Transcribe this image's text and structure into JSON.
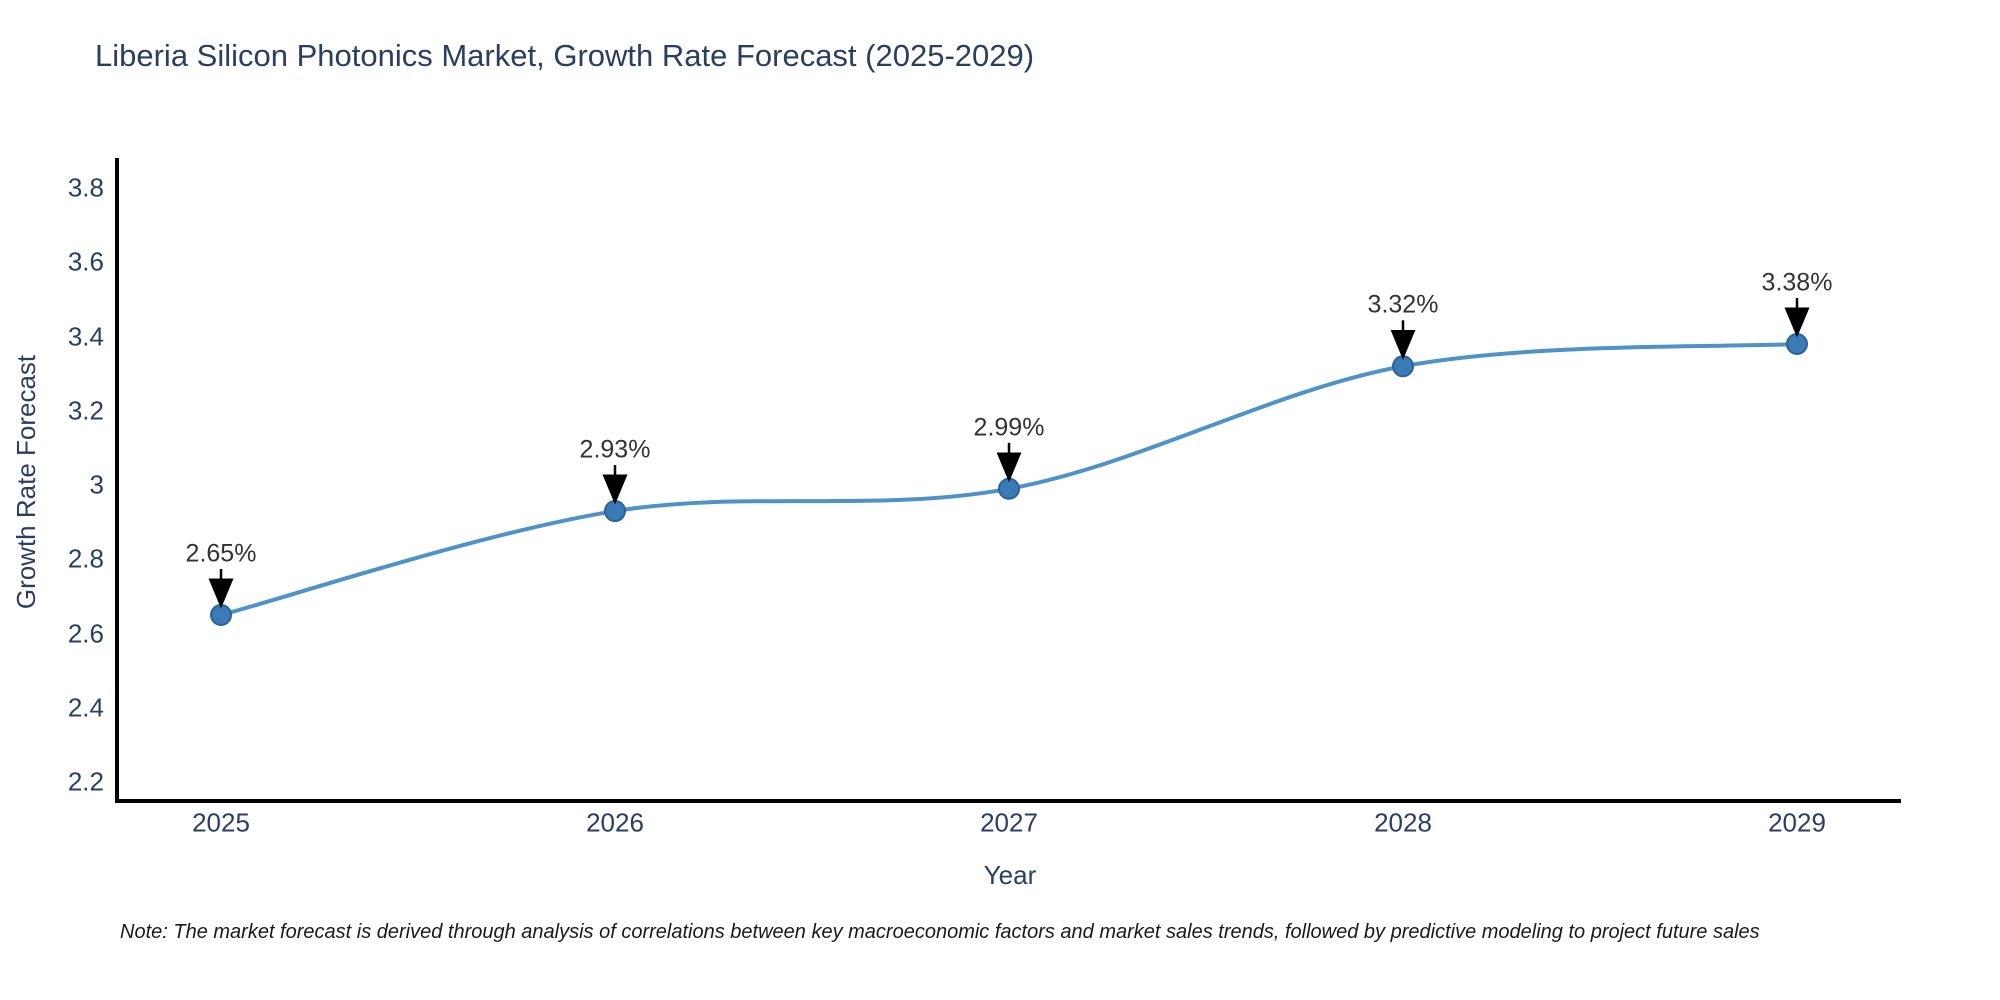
{
  "page": {
    "background": "#ffffff"
  },
  "chart_data": {
    "type": "line",
    "title": "Liberia Silicon Photonics Market, Growth Rate Forecast (2025-2029)",
    "xlabel": "Year",
    "ylabel": "Growth Rate Forecast",
    "categories": [
      "2025",
      "2026",
      "2027",
      "2028",
      "2029"
    ],
    "values": [
      2.65,
      2.93,
      2.99,
      3.32,
      3.38
    ],
    "point_labels": [
      "2.65%",
      "2.93%",
      "2.99%",
      "3.32%",
      "3.38%"
    ],
    "yticks": [
      2.2,
      2.4,
      2.6,
      2.8,
      3.0,
      3.2,
      3.4,
      3.6,
      3.8
    ],
    "ytick_labels": [
      "2.2",
      "2.4",
      "2.6",
      "2.8",
      "3",
      "3.2",
      "3.4",
      "3.6",
      "3.8"
    ],
    "ylim": [
      2.149,
      3.881
    ],
    "grid": false,
    "legend": false,
    "line_shape": "spline",
    "annotations": "value labels with downward black arrows above each point",
    "note": "Note: The market forecast is derived through analysis of correlations between key macroeconomic factors and market sales trends, followed by predictive modeling to project future sales",
    "colors": {
      "line": "#4e92c8",
      "marker_fill": "#3a7ab6",
      "marker_edge": "#2d6295",
      "axis": "#000000",
      "arrow": "#000000",
      "text": "#2a3f5f",
      "annotation_text": "#333333"
    }
  }
}
